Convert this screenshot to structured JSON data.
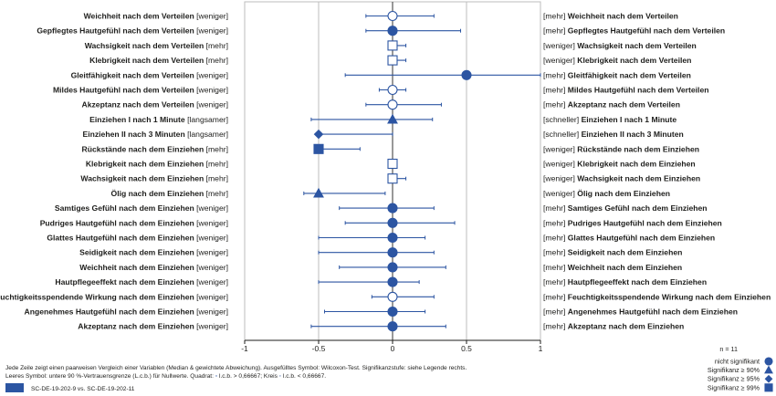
{
  "chart_data": {
    "type": "scatter",
    "title": "",
    "xlabel": "",
    "ylabel": "",
    "xlim": [
      -1,
      1
    ],
    "xticks": [
      "-1",
      "-0.5",
      "0",
      "0.5",
      "1"
    ],
    "grid": true,
    "colors": {
      "marker": "#2c55a2",
      "axis": "#1d1d1b",
      "grid": "#bdbdbd"
    },
    "rows": [
      {
        "left_bold": "Weichheit nach dem Verteilen",
        "left_tag": "[weniger]",
        "right_tag": "[mehr]",
        "right_bold": "Weichheit nach dem Verteilen",
        "value": 0.0,
        "ci": [
          -0.18,
          0.28
        ],
        "shape": "circle",
        "filled": false
      },
      {
        "left_bold": "Gepflegtes Hautgefühl nach dem Verteilen",
        "left_tag": "[weniger]",
        "right_tag": "[mehr]",
        "right_bold": "Gepflegtes Hautgefühl nach dem Verteilen",
        "value": 0.0,
        "ci": [
          -0.18,
          0.46
        ],
        "shape": "circle",
        "filled": true
      },
      {
        "left_bold": "Wachsigkeit nach dem Verteilen",
        "left_tag": "[mehr]",
        "right_tag": "[weniger]",
        "right_bold": "Wachsigkeit nach dem Verteilen",
        "value": 0.0,
        "ci": [
          -0.02,
          0.09
        ],
        "shape": "square",
        "filled": false
      },
      {
        "left_bold": "Klebrigkeit nach dem Verteilen",
        "left_tag": "[mehr]",
        "right_tag": "[weniger]",
        "right_bold": "Klebrigkeit nach dem Verteilen",
        "value": 0.0,
        "ci": [
          -0.02,
          0.09
        ],
        "shape": "square",
        "filled": false
      },
      {
        "left_bold": "Gleitfähigkeit nach dem Verteilen",
        "left_tag": "[weniger]",
        "right_tag": "[mehr]",
        "right_bold": "Gleitfähigkeit nach dem Verteilen",
        "value": 0.5,
        "ci": [
          -0.32,
          1.0
        ],
        "shape": "circle",
        "filled": true
      },
      {
        "left_bold": "Mildes Hautgefühl nach dem Verteilen",
        "left_tag": "[weniger]",
        "right_tag": "[mehr]",
        "right_bold": "Mildes Hautgefühl nach dem Verteilen",
        "value": 0.0,
        "ci": [
          -0.09,
          0.09
        ],
        "shape": "circle",
        "filled": false
      },
      {
        "left_bold": "Akzeptanz nach dem Verteilen",
        "left_tag": "[weniger]",
        "right_tag": "[mehr]",
        "right_bold": "Akzeptanz nach dem Verteilen",
        "value": 0.0,
        "ci": [
          -0.18,
          0.33
        ],
        "shape": "circle",
        "filled": false
      },
      {
        "left_bold": "Einziehen I nach 1 Minute",
        "left_tag": "[langsamer]",
        "right_tag": "[schneller]",
        "right_bold": "Einziehen I nach 1 Minute",
        "value": 0.0,
        "ci": [
          -0.55,
          0.27
        ],
        "shape": "triangle",
        "filled": true
      },
      {
        "left_bold": "Einziehen II nach 3 Minuten",
        "left_tag": "[langsamer]",
        "right_tag": "[schneller]",
        "right_bold": "Einziehen II nach 3 Minuten",
        "value": -0.5,
        "ci": [
          -0.5,
          0.0
        ],
        "shape": "diamond",
        "filled": true
      },
      {
        "left_bold": "Rückstände nach dem Einziehen",
        "left_tag": "[mehr]",
        "right_tag": "[weniger]",
        "right_bold": "Rückstände nach dem Einziehen",
        "value": -0.5,
        "ci": [
          -0.5,
          -0.22
        ],
        "shape": "square",
        "filled": true
      },
      {
        "left_bold": "Klebrigkeit nach dem Einziehen",
        "left_tag": "[mehr]",
        "right_tag": "[weniger]",
        "right_bold": "Klebrigkeit nach dem Einziehen",
        "value": 0.0,
        "ci": [
          -0.02,
          0.02
        ],
        "shape": "square",
        "filled": false
      },
      {
        "left_bold": "Wachsigkeit nach dem Einziehen",
        "left_tag": "[mehr]",
        "right_tag": "[weniger]",
        "right_bold": "Wachsigkeit nach dem Einziehen",
        "value": 0.0,
        "ci": [
          -0.02,
          0.09
        ],
        "shape": "square",
        "filled": false
      },
      {
        "left_bold": "Ölig nach dem Einziehen",
        "left_tag": "[mehr]",
        "right_tag": "[weniger]",
        "right_bold": "Ölig nach dem Einziehen",
        "value": -0.5,
        "ci": [
          -0.6,
          -0.05
        ],
        "shape": "triangle",
        "filled": true
      },
      {
        "left_bold": "Samtiges Gefühl nach dem Einziehen",
        "left_tag": "[weniger]",
        "right_tag": "[mehr]",
        "right_bold": "Samtiges Gefühl nach dem Einziehen",
        "value": 0.0,
        "ci": [
          -0.36,
          0.28
        ],
        "shape": "circle",
        "filled": true
      },
      {
        "left_bold": "Pudriges Hautgefühl nach dem Einziehen",
        "left_tag": "[weniger]",
        "right_tag": "[mehr]",
        "right_bold": "Pudriges Hautgefühl nach dem Einziehen",
        "value": 0.0,
        "ci": [
          -0.32,
          0.42
        ],
        "shape": "circle",
        "filled": true
      },
      {
        "left_bold": "Glattes Hautgefühl nach dem Einziehen",
        "left_tag": "[weniger]",
        "right_tag": "[mehr]",
        "right_bold": "Glattes Hautgefühl nach dem Einziehen",
        "value": 0.0,
        "ci": [
          -0.5,
          0.22
        ],
        "shape": "circle",
        "filled": true
      },
      {
        "left_bold": "Seidigkeit nach dem Einziehen",
        "left_tag": "[weniger]",
        "right_tag": "[mehr]",
        "right_bold": "Seidigkeit nach dem Einziehen",
        "value": 0.0,
        "ci": [
          -0.5,
          0.28
        ],
        "shape": "circle",
        "filled": true
      },
      {
        "left_bold": "Weichheit nach dem Einziehen",
        "left_tag": "[weniger]",
        "right_tag": "[mehr]",
        "right_bold": "Weichheit nach dem Einziehen",
        "value": 0.0,
        "ci": [
          -0.36,
          0.36
        ],
        "shape": "circle",
        "filled": true
      },
      {
        "left_bold": "Hautpflegeeffekt nach dem Einziehen",
        "left_tag": "[weniger]",
        "right_tag": "[mehr]",
        "right_bold": "Hautpflegeeffekt nach dem Einziehen",
        "value": 0.0,
        "ci": [
          -0.5,
          0.18
        ],
        "shape": "circle",
        "filled": true
      },
      {
        "left_bold": "Feuchtigkeitsspendende Wirkung nach dem Einziehen",
        "left_tag": "[weniger]",
        "right_tag": "[mehr]",
        "right_bold": "Feuchtigkeitsspendende Wirkung nach dem Einziehen",
        "value": 0.0,
        "ci": [
          -0.14,
          0.28
        ],
        "shape": "circle",
        "filled": false
      },
      {
        "left_bold": "Angenehmes Hautgefühl nach dem Einziehen",
        "left_tag": "[weniger]",
        "right_tag": "[mehr]",
        "right_bold": "Angenehmes Hautgefühl nach dem Einziehen",
        "value": 0.0,
        "ci": [
          -0.46,
          0.22
        ],
        "shape": "circle",
        "filled": true
      },
      {
        "left_bold": "Akzeptanz nach dem Einziehen",
        "left_tag": "[weniger]",
        "right_tag": "[mehr]",
        "right_bold": "Akzeptanz nach dem Einziehen",
        "value": 0.0,
        "ci": [
          -0.55,
          0.36
        ],
        "shape": "circle",
        "filled": true
      }
    ],
    "notes": [
      "Jede Zeile zeigt einen paarweisen Vergleich einer Variablen (Median & gewichtete Abweichung). Ausgefülltes Symbol: Wilcoxon-Test. Signifikanzstufe: siehe Legende rechts.",
      "Leeres Symbol: untere 90 %-Vertrauensgrenze (L.c.b.) für Nullwerte. Quadrat:",
      "l.c.b. > 0,66667; Kreis",
      "l.c.b. < 0,66667."
    ],
    "comparison_label": "SC-DE-19-202-9 vs. SC-DE-19-202-11",
    "legend": {
      "n_label": "n = 11",
      "items": [
        {
          "label": "nicht signifikant",
          "shape": "circle"
        },
        {
          "label": "Signifikanz ≥ 90%",
          "shape": "triangle"
        },
        {
          "label": "Signifikanz ≥ 95%",
          "shape": "diamond"
        },
        {
          "label": "Signifikanz ≥ 99%",
          "shape": "square"
        }
      ]
    }
  }
}
